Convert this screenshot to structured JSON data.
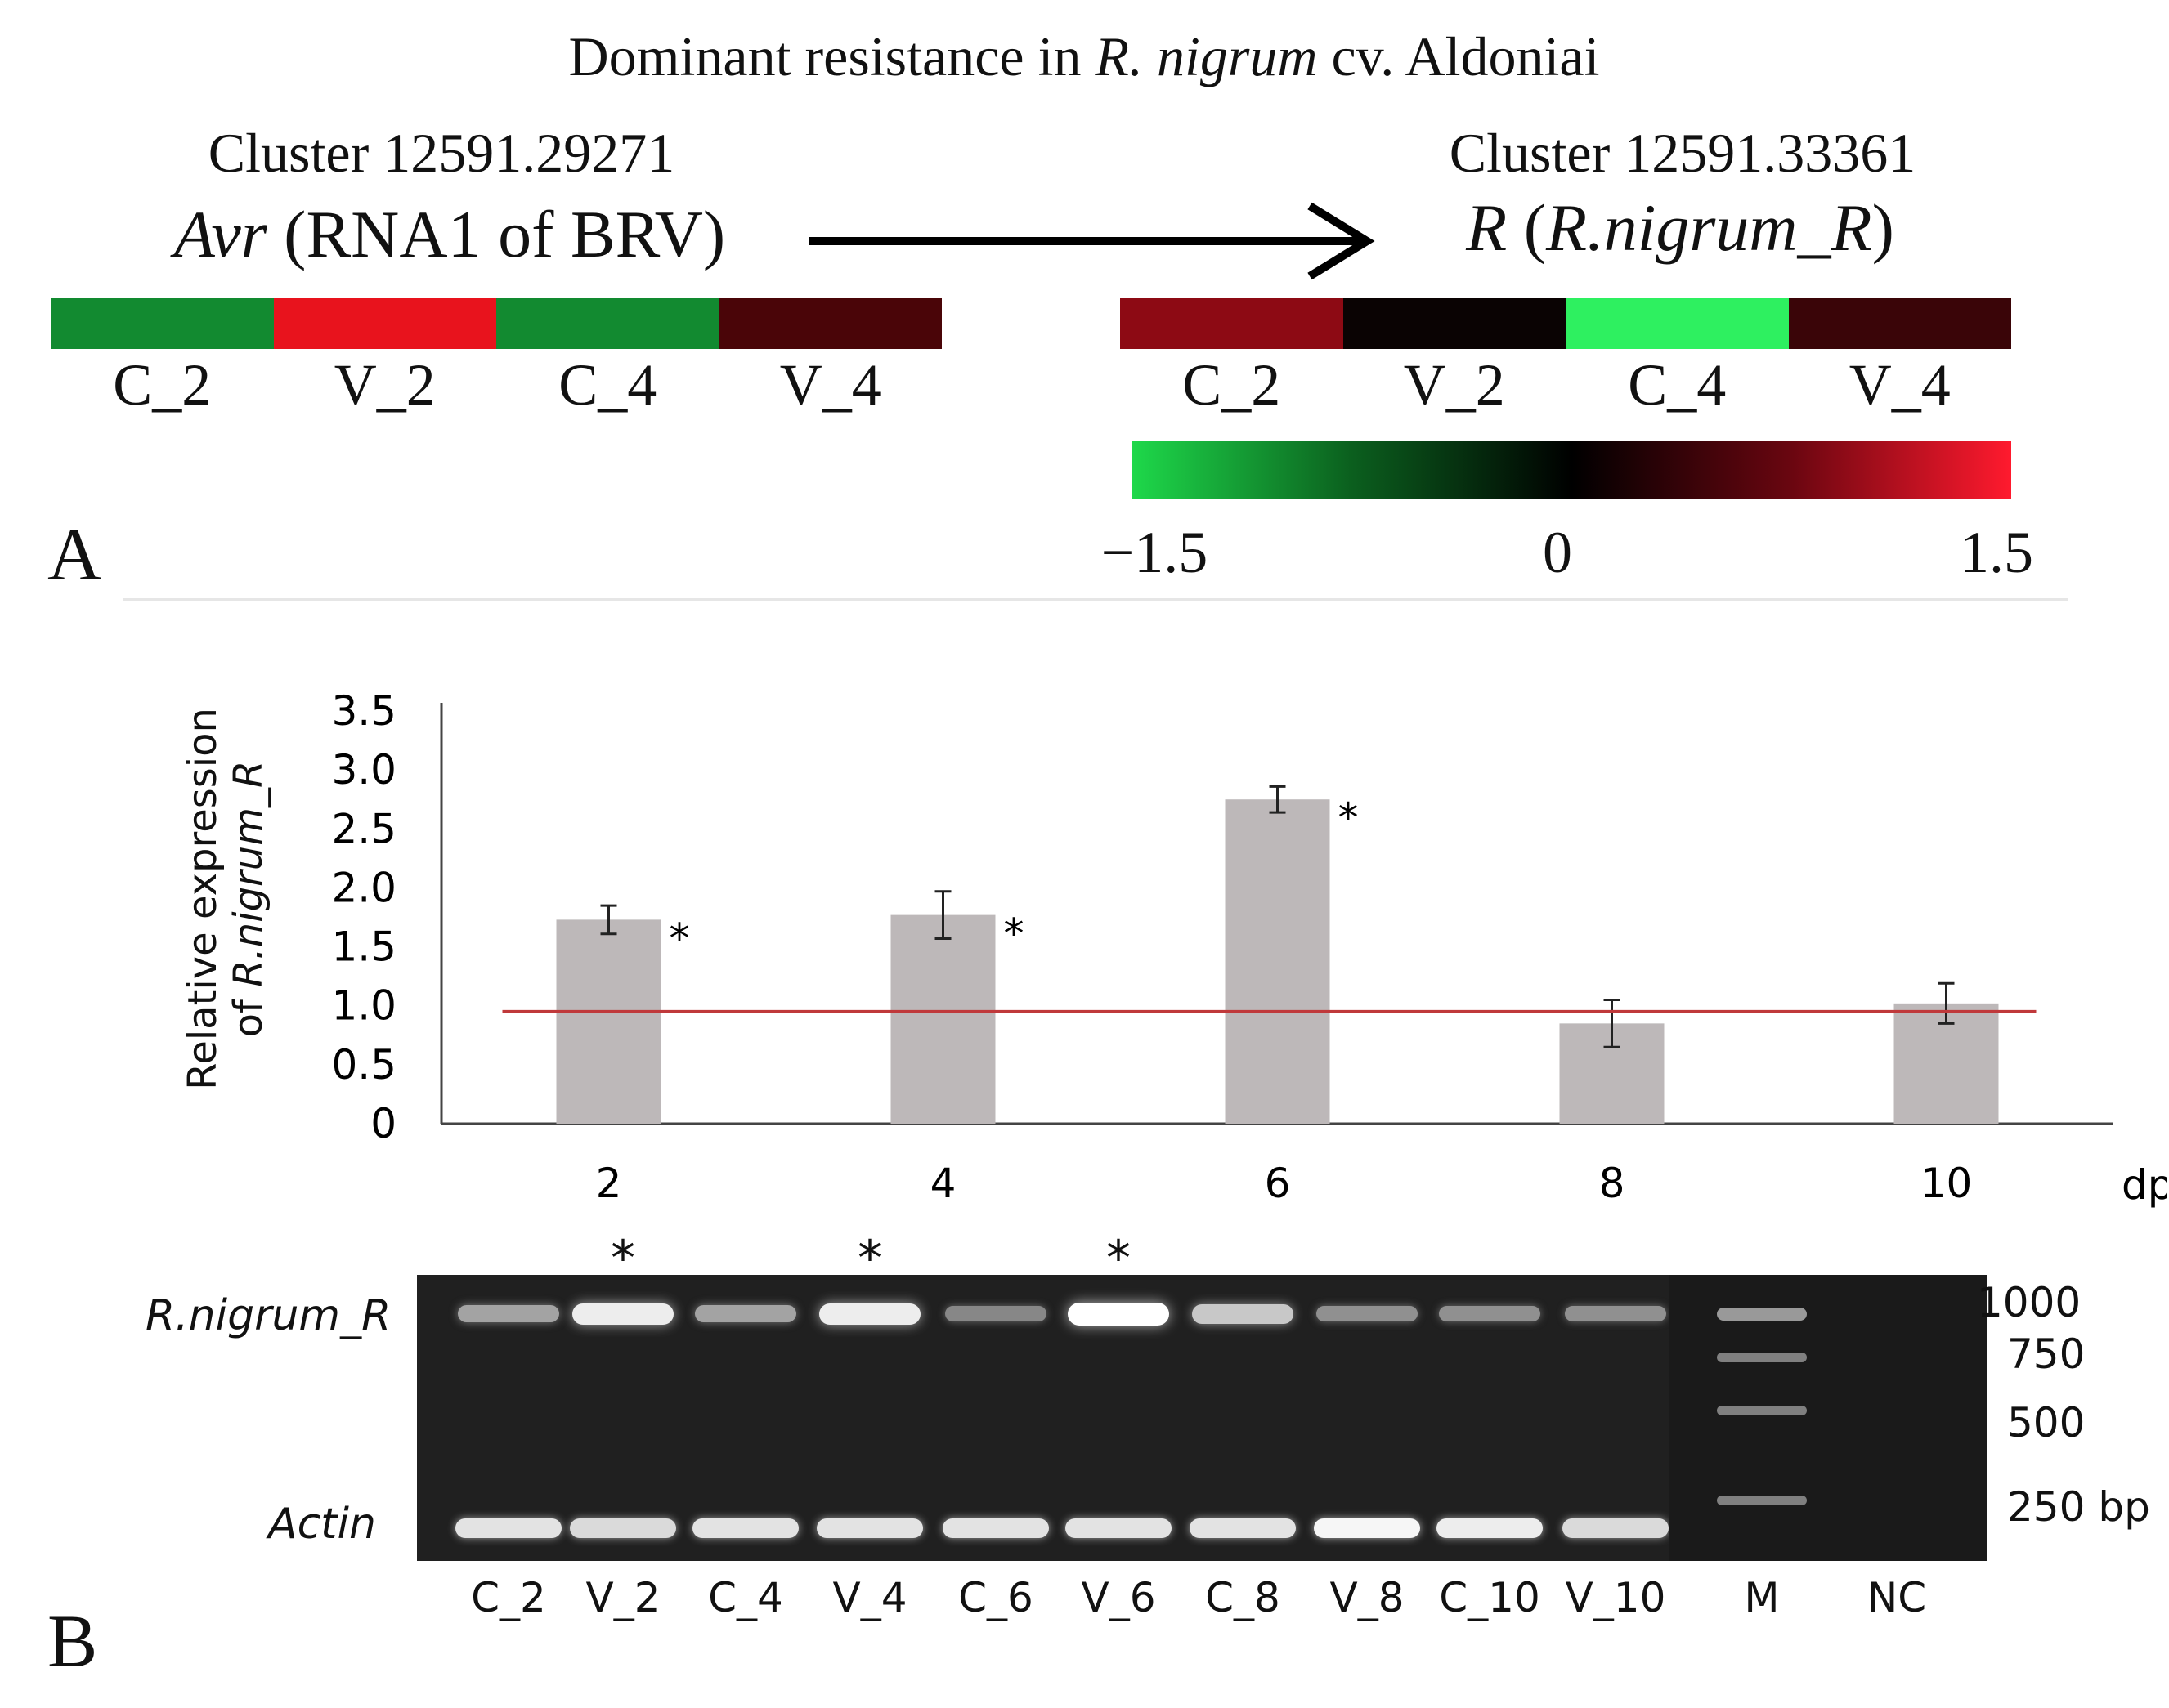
{
  "panel_a": {
    "title": {
      "pre": "Dominant resistance in ",
      "species": "R. nigrum",
      "post": " cv. Aldoniai"
    },
    "left": {
      "cluster": "Cluster 12591.29271",
      "gene_italic": "Avr",
      "gene_rest": " (RNA1 of BRV)",
      "cells": [
        {
          "label": "C_2",
          "color": "#128a30"
        },
        {
          "label": "V_2",
          "color": "#e8131d"
        },
        {
          "label": "C_4",
          "color": "#128a30"
        },
        {
          "label": "V_4",
          "color": "#4a0508"
        }
      ]
    },
    "right": {
      "cluster": "Cluster 12591.33361",
      "gene_italic": "R",
      "gene_open": " (",
      "gene_inner_italic": "R.nigrum_R",
      "gene_close": ")",
      "cells": [
        {
          "label": "C_2",
          "color": "#8d0a14"
        },
        {
          "label": "V_2",
          "color": "#0a0303"
        },
        {
          "label": "C_4",
          "color": "#2ef060"
        },
        {
          "label": "V_4",
          "color": "#3a0508"
        }
      ]
    },
    "colorbar": {
      "min": "−1.5",
      "mid": "0",
      "max": "1.5"
    },
    "letter": "A"
  },
  "chart_data": {
    "type": "bar",
    "categories": [
      "2",
      "4",
      "6",
      "8",
      "10"
    ],
    "values": [
      1.73,
      1.77,
      2.75,
      0.85,
      1.02
    ],
    "errors": [
      0.12,
      0.2,
      0.11,
      0.2,
      0.17
    ],
    "significant": [
      true,
      true,
      true,
      false,
      false
    ],
    "significance_marker": "*",
    "reference_line": 0.95,
    "reference_line_color": "#c0393b",
    "bar_color": "#bdb8b9",
    "xlabel": "dpi",
    "ylabel_line1": "Relative expression",
    "ylabel_line2_pre": "of ",
    "ylabel_line2_italic": "R.nigrum_R",
    "yticks": [
      "0",
      "0.5",
      "1.0",
      "1.5",
      "2.0",
      "2.5",
      "3.0",
      "3.5"
    ],
    "ylim": [
      0,
      3.5
    ],
    "grid": false,
    "legend": "none"
  },
  "gel": {
    "row_labels": {
      "top": "R.nigrum_R",
      "bottom": "Actin"
    },
    "lanes": [
      "C_2",
      "V_2",
      "C_4",
      "V_4",
      "C_6",
      "V_6",
      "C_8",
      "V_8",
      "C_10",
      "V_10",
      "M",
      "NC"
    ],
    "top_band_intensity": [
      0.5,
      0.9,
      0.5,
      0.9,
      0.35,
      1.0,
      0.7,
      0.4,
      0.4,
      0.4,
      0.45,
      0
    ],
    "bottom_band_intensity": [
      0.85,
      0.8,
      0.85,
      0.85,
      0.85,
      0.85,
      0.85,
      0.95,
      0.9,
      0.8,
      0,
      0
    ],
    "starred_lanes": [
      "V_2",
      "V_4",
      "V_6"
    ],
    "star": "*",
    "sizes": [
      "1000",
      "750",
      "500",
      "250 bp"
    ]
  },
  "panel_b_letter": "B"
}
